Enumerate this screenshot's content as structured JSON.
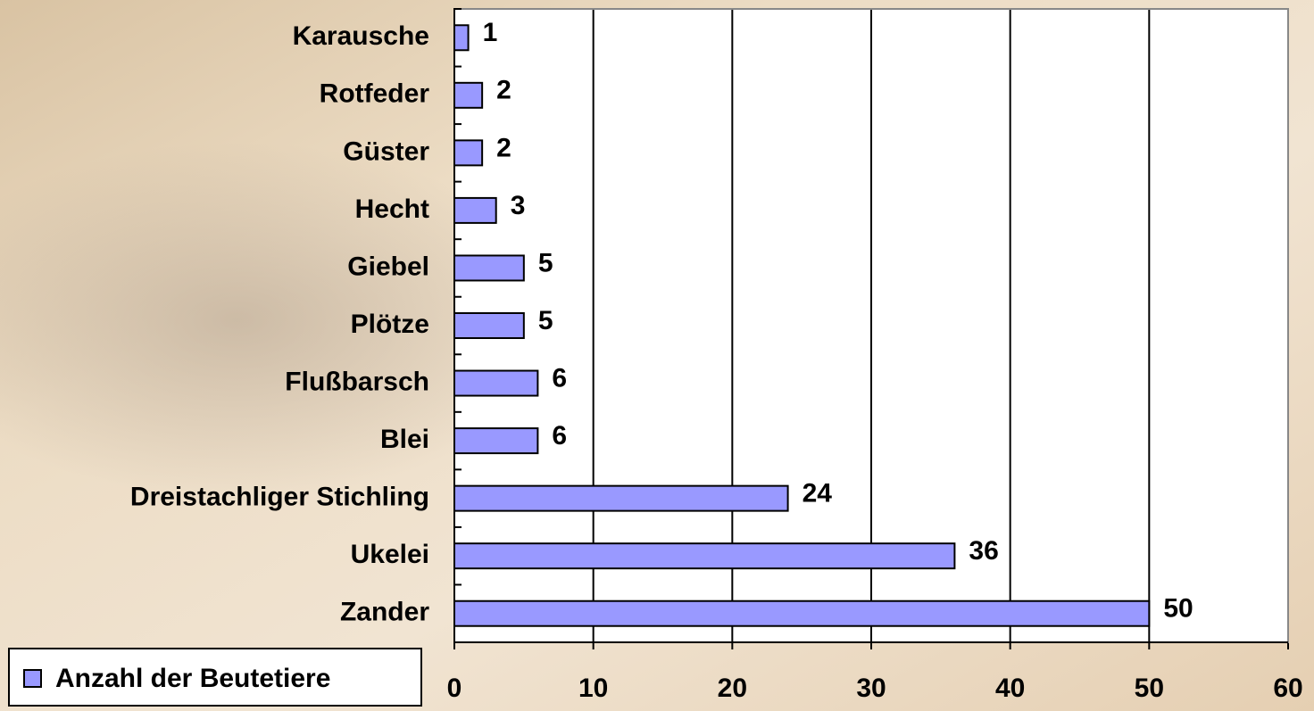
{
  "chart_data": {
    "type": "bar",
    "categories": [
      "Karausche",
      "Rotfeder",
      "Güster",
      "Hecht",
      "Giebel",
      "Plötze",
      "Flußbarsch",
      "Blei",
      "Dreistachliger Stichling",
      "Ukelei",
      "Zander"
    ],
    "series": [
      {
        "name": "Anzahl der Beutetiere",
        "color": "#9999ff",
        "values": [
          1,
          2,
          2,
          3,
          5,
          5,
          6,
          6,
          24,
          36,
          50
        ]
      }
    ],
    "xlim": [
      0,
      60
    ],
    "xticks": [
      0,
      10,
      20,
      30,
      40,
      50,
      60
    ],
    "grid": true
  }
}
